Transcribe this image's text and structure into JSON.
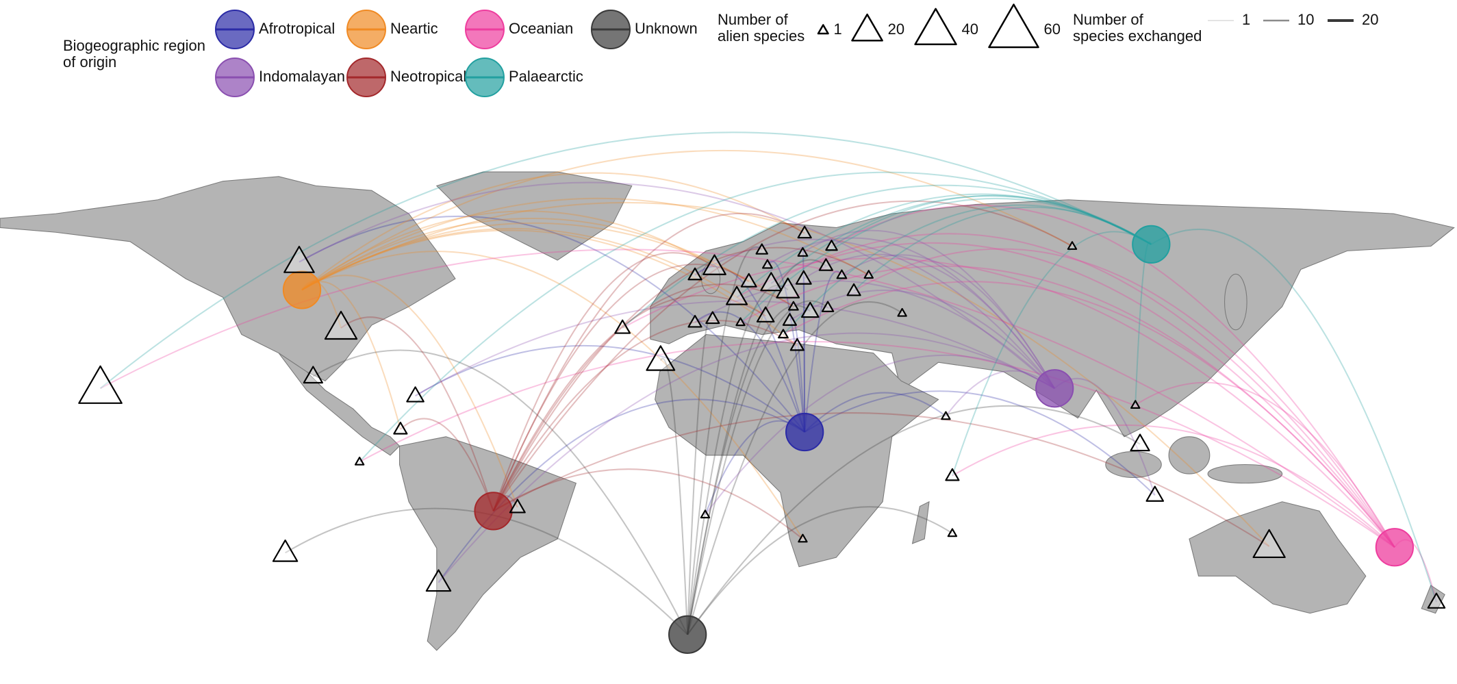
{
  "legend": {
    "region_title": [
      "Biogeographic region",
      "of origin"
    ],
    "regions": [
      {
        "name": "Afrotropical",
        "color": "#2b2ba6"
      },
      {
        "name": "Neartic",
        "color": "#f08a24"
      },
      {
        "name": "Oceanian",
        "color": "#ee3d9e"
      },
      {
        "name": "Unknown",
        "color": "#3a3a3a"
      },
      {
        "name": "Indomalayan",
        "color": "#8a4fb0"
      },
      {
        "name": "Neotropical",
        "color": "#a3282b"
      },
      {
        "name": "Palaearctic",
        "color": "#22a0a0"
      }
    ],
    "species_title": [
      "Number of",
      "alien species"
    ],
    "species_values": [
      1,
      20,
      40,
      60
    ],
    "exchange_title": [
      "Number of",
      "species exchanged"
    ],
    "exchange_values": [
      1,
      10,
      20
    ]
  }
}
